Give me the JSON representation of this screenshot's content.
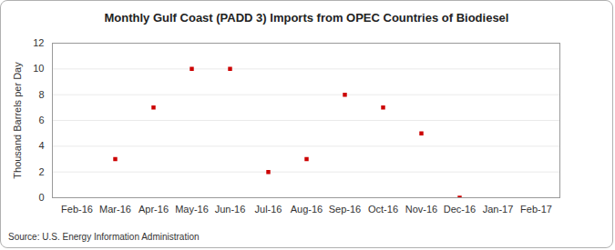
{
  "chart_data": {
    "type": "scatter",
    "title": "Monthly Gulf Coast (PADD 3) Imports from OPEC Countries of Biodiesel",
    "y_label": "Thousand Barrels per Day",
    "source": "Source: U.S. Energy Information Administration",
    "categories": [
      "Feb-16",
      "Mar-16",
      "Apr-16",
      "May-16",
      "Jun-16",
      "Jul-16",
      "Aug-16",
      "Sep-16",
      "Oct-16",
      "Nov-16",
      "Dec-16",
      "Jan-17",
      "Feb-17"
    ],
    "values": [
      null,
      3,
      7,
      10,
      10,
      2,
      3,
      8,
      7,
      5,
      0,
      null,
      null
    ],
    "color": "#cc0000",
    "marker": "square",
    "ylim": [
      0,
      12
    ],
    "yticks": [
      0,
      2,
      4,
      6,
      8,
      10,
      12
    ],
    "grid": true
  }
}
